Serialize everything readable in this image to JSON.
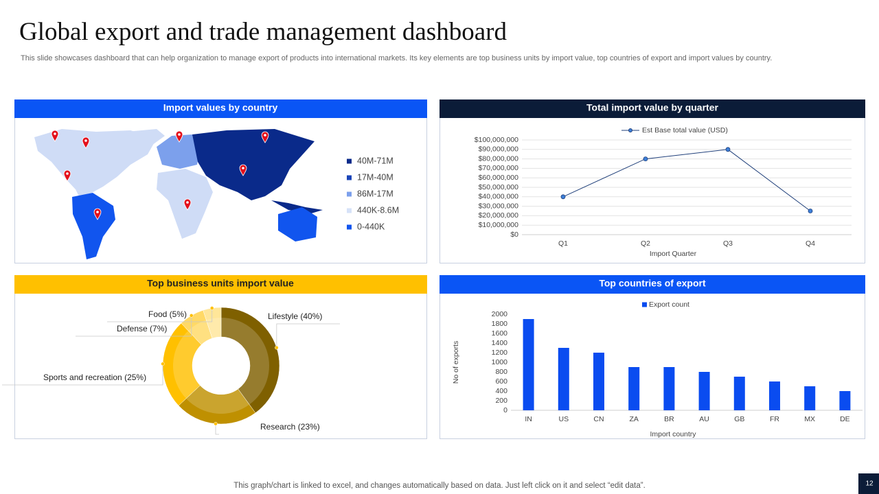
{
  "header": {
    "title": "Global export and trade management dashboard",
    "subtitle": "This slide showcases dashboard that can help organization to manage export of products into international markets. Its key elements are top business units by import value, top countries of export and import values by country."
  },
  "map_panel": {
    "title": "Import values by country",
    "legend": [
      {
        "label": "40M-71M",
        "color": "#0a2a8a"
      },
      {
        "label": "17M-40M",
        "color": "#1a44b8"
      },
      {
        "label": "86M-17M",
        "color": "#7ca0ec"
      },
      {
        "label": "440K-8.6M",
        "color": "#d6e2f8"
      },
      {
        "label": "0-440K",
        "color": "#1155ee"
      }
    ]
  },
  "chart_data": [
    {
      "type": "line",
      "title": "Total import value by quarter",
      "x_label": "Import Quarter",
      "categories": [
        "Q1",
        "Q2",
        "Q3",
        "Q4"
      ],
      "series": [
        {
          "name": "Est Base total value (USD)",
          "color": "#1f3f7a",
          "values": [
            40000000,
            80000000,
            90000000,
            25000000
          ]
        }
      ],
      "ylim": [
        0,
        100000000
      ],
      "yticks": [
        {
          "value": 0,
          "label": "$0"
        },
        {
          "value": 10000000,
          "label": "$10,000,000"
        },
        {
          "value": 20000000,
          "label": "$20,000,000"
        },
        {
          "value": 30000000,
          "label": "$30,000,000"
        },
        {
          "value": 40000000,
          "label": "$40,000,000"
        },
        {
          "value": 50000000,
          "label": "$50,000,000"
        },
        {
          "value": 60000000,
          "label": "$60,000,000"
        },
        {
          "value": 70000000,
          "label": "$70,000,000"
        },
        {
          "value": 80000000,
          "label": "$80,000,000"
        },
        {
          "value": 90000000,
          "label": "$90,000,000"
        },
        {
          "value": 100000000,
          "label": "$100,000,000"
        }
      ],
      "grid": true
    },
    {
      "type": "pie",
      "title": "Top business units import value",
      "categories": [
        "Lifestyle (40%)",
        "Research (23%)",
        "Sports and recreation (25%)",
        "Defense (7%)",
        "Food (5%)"
      ],
      "values": [
        40,
        23,
        25,
        7,
        5
      ],
      "colors": [
        "#7f6000",
        "#bf9000",
        "#ffc000",
        "#ffd966",
        "#ffe699"
      ]
    },
    {
      "type": "bar",
      "title": "Top countries of export",
      "x_label": "Import country",
      "y_label": "No of exports",
      "categories": [
        "IN",
        "US",
        "CN",
        "ZA",
        "BR",
        "AU",
        "GB",
        "FR",
        "MX",
        "DE"
      ],
      "series": [
        {
          "name": "Export count",
          "color": "#0a4cf0",
          "values": [
            1900,
            1300,
            1200,
            900,
            900,
            800,
            700,
            600,
            500,
            400
          ]
        }
      ],
      "ylim": [
        0,
        2000
      ],
      "yticks": [
        0,
        200,
        400,
        600,
        800,
        1000,
        1200,
        1400,
        1600,
        1800,
        2000
      ],
      "grid": false
    }
  ],
  "footer": {
    "note": "This graph/chart is linked to excel,  and changes automatically based on data. Just left click on it and select “edit data”.",
    "page_number": "12"
  }
}
